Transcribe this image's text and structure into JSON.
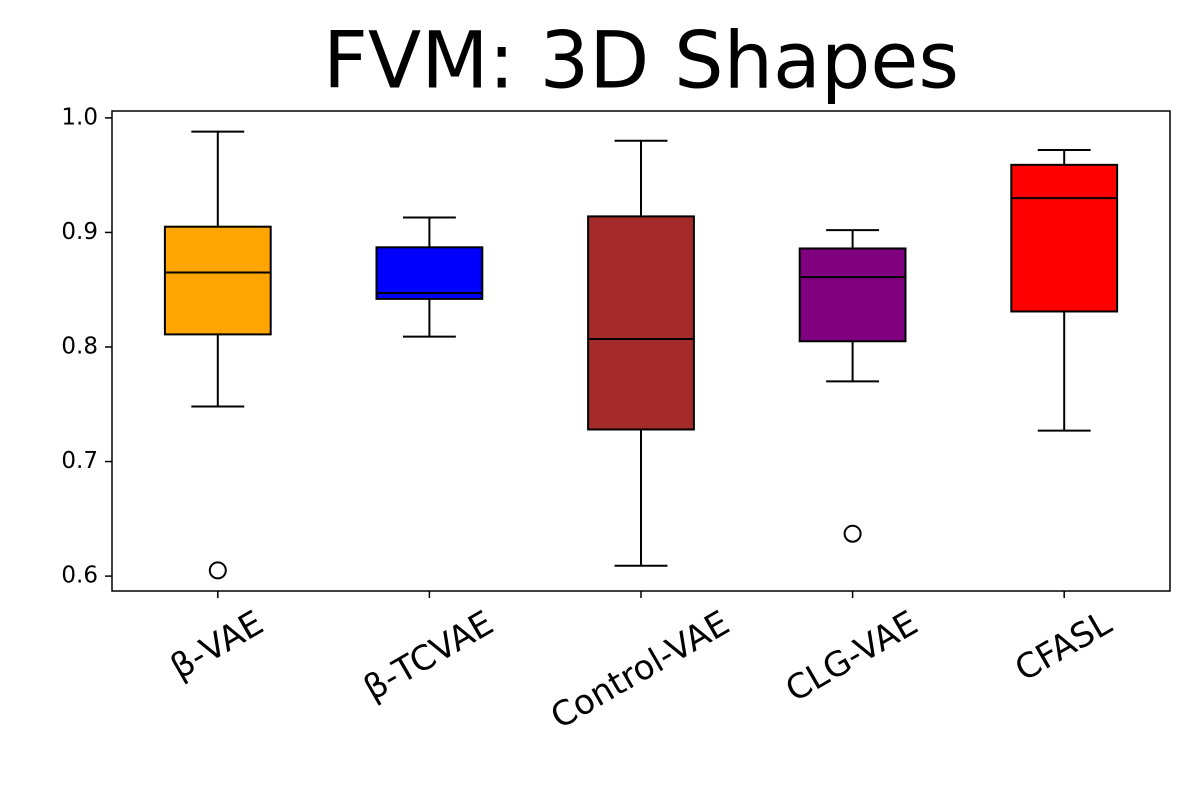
{
  "chart_data": {
    "type": "box",
    "title": "FVM: 3D Shapes",
    "categories": [
      "β-VAE",
      "β-TCVAE",
      "Control-VAE",
      "CLG-VAE",
      "CFASL"
    ],
    "colors": [
      "#ffa500",
      "#0000ff",
      "#a52a2a",
      "#800080",
      "#ff0000"
    ],
    "boxes": [
      {
        "whislo": 0.748,
        "q1": 0.811,
        "med": 0.865,
        "q3": 0.905,
        "whishi": 0.988,
        "fliers": [
          0.605
        ]
      },
      {
        "whislo": 0.809,
        "q1": 0.842,
        "med": 0.847,
        "q3": 0.887,
        "whishi": 0.913,
        "fliers": []
      },
      {
        "whislo": 0.609,
        "q1": 0.728,
        "med": 0.807,
        "q3": 0.914,
        "whishi": 0.98,
        "fliers": []
      },
      {
        "whislo": 0.77,
        "q1": 0.805,
        "med": 0.861,
        "q3": 0.886,
        "whishi": 0.902,
        "fliers": [
          0.637
        ]
      },
      {
        "whislo": 0.727,
        "q1": 0.831,
        "med": 0.93,
        "q3": 0.959,
        "whishi": 0.972,
        "fliers": []
      }
    ],
    "ylim": [
      0.587,
      1.006
    ],
    "yticks": [
      0.6,
      0.7,
      0.8,
      0.9,
      {
        "value": 1,
        "label": "1.0"
      }
    ],
    "grid": false
  }
}
